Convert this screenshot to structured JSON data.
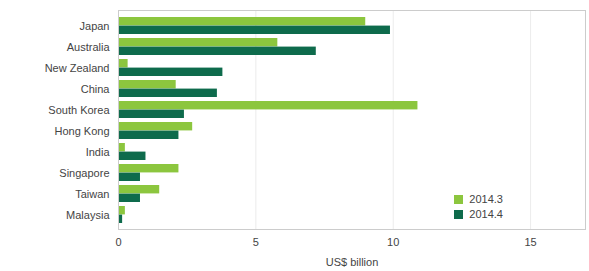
{
  "chart_data": {
    "type": "bar",
    "orientation": "horizontal",
    "x_label": "US$ billion",
    "categories": [
      "Japan",
      "Australia",
      "New Zealand",
      "China",
      "South Korea",
      "Hong Kong",
      "India",
      "Singapore",
      "Taiwan",
      "Malaysia"
    ],
    "series": [
      {
        "name": "2014.3",
        "color": "#8cc63e",
        "values": [
          9.0,
          5.8,
          0.35,
          2.1,
          10.9,
          2.7,
          0.25,
          2.2,
          1.5,
          0.25
        ]
      },
      {
        "name": "2014.4",
        "color": "#0e6b4c",
        "values": [
          9.9,
          7.2,
          3.8,
          3.6,
          2.4,
          2.2,
          1.0,
          0.8,
          0.8,
          0.15
        ]
      }
    ],
    "xlim": [
      0,
      17
    ],
    "xticks": [
      0,
      5,
      10,
      15
    ],
    "grid": true,
    "legend": "lower right"
  }
}
